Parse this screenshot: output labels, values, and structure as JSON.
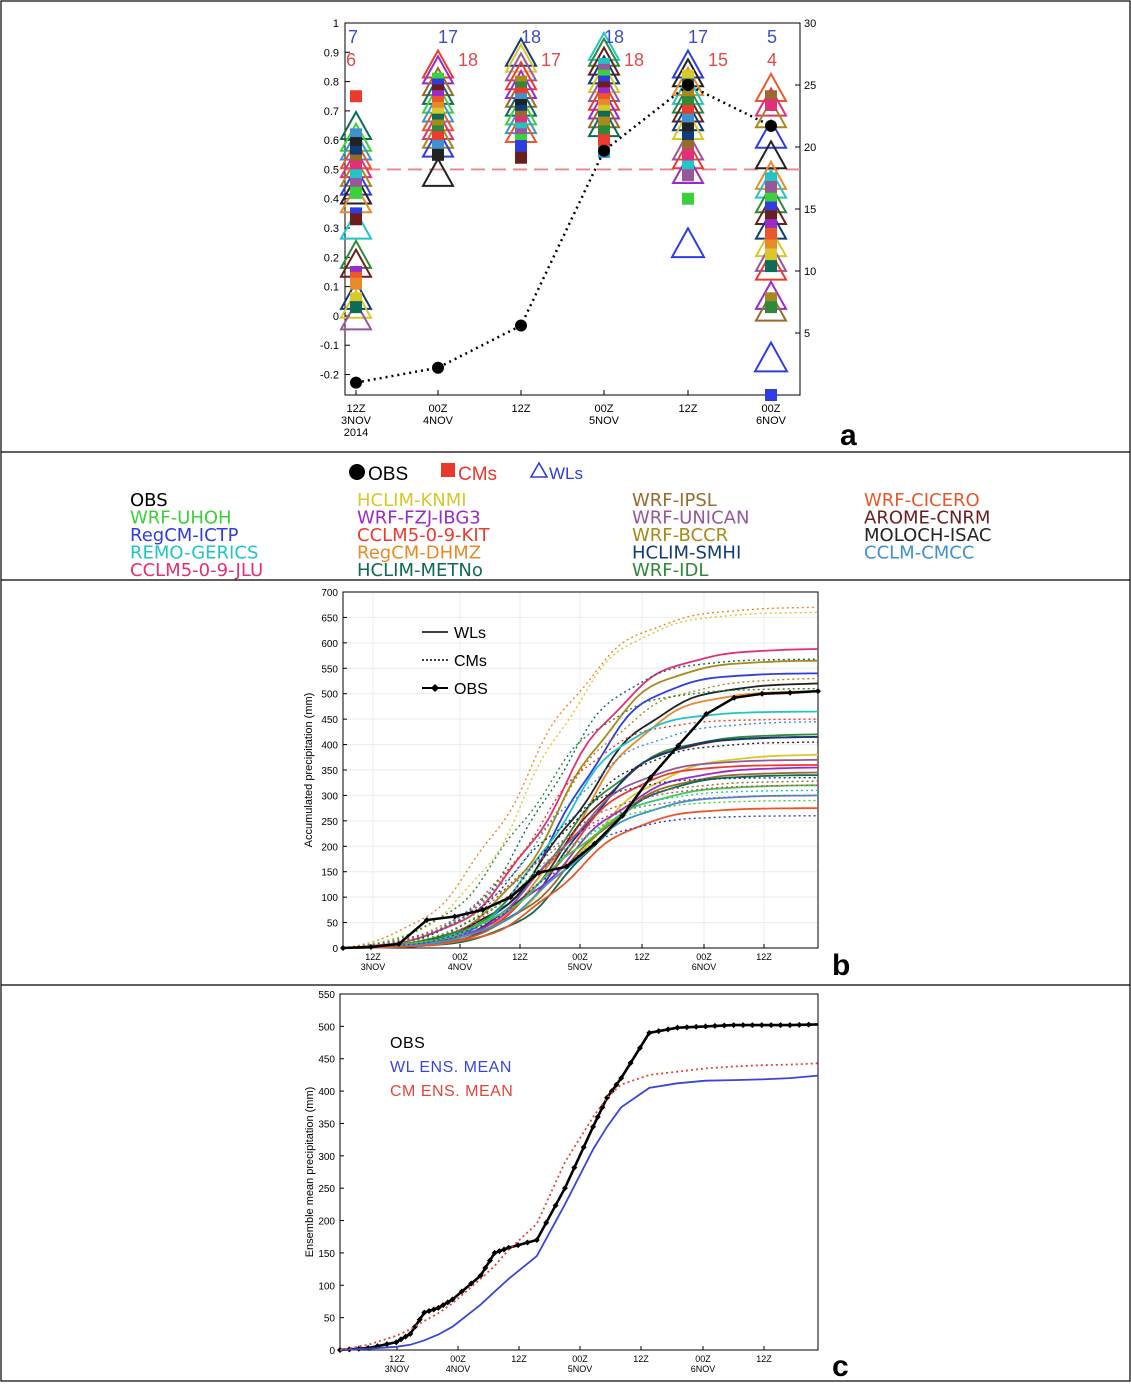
{
  "figure": {
    "panel_labels": [
      "a",
      "b",
      "c"
    ],
    "model_legend": {
      "key": [
        {
          "marker": "circle",
          "label": "OBS",
          "color": "#000000"
        },
        {
          "marker": "square",
          "label": "CMs",
          "color": "#e8382c"
        },
        {
          "marker": "triangle",
          "label": "WLs",
          "color": "#2e3de0"
        }
      ],
      "columns": [
        [
          {
            "label": "OBS",
            "color": "#000000"
          },
          {
            "label": "WRF-UHOH",
            "color": "#3bd13b"
          },
          {
            "label": "RegCM-ICTP",
            "color": "#2e3de0"
          },
          {
            "label": "REMO-GERICS",
            "color": "#22c4c4"
          },
          {
            "label": "CCLM5-0-9-JLU",
            "color": "#e0307a"
          }
        ],
        [
          {
            "label": "HCLIM-KNMI",
            "color": "#d9c82b"
          },
          {
            "label": "WRF-FZJ-IBG3",
            "color": "#9b2bc9"
          },
          {
            "label": "CCLM5-0-9-KIT",
            "color": "#ec3b2e"
          },
          {
            "label": "RegCM-DHMZ",
            "color": "#e8892a"
          },
          {
            "label": "HCLIM-METNo",
            "color": "#0e6b55"
          }
        ],
        [
          {
            "label": "WRF-IPSL",
            "color": "#9a6a2c"
          },
          {
            "label": "WRF-UNICAN",
            "color": "#96589a"
          },
          {
            "label": "WRF-BCCR",
            "color": "#a8891c"
          },
          {
            "label": "HCLIM-SMHI",
            "color": "#123c78"
          },
          {
            "label": "WRF-IDL",
            "color": "#2e8a3a"
          }
        ],
        [
          {
            "label": "WRF-CICERO",
            "color": "#e8582a"
          },
          {
            "label": "AROME-CNRM",
            "color": "#6b1e1e"
          },
          {
            "label": "MOLOCH-ISAC",
            "color": "#222222"
          },
          {
            "label": "CCLM-CMCC",
            "color": "#3f92cc"
          }
        ]
      ]
    }
  },
  "chart_data": [
    {
      "panel": "a",
      "type": "scatter",
      "categories": [
        "12Z\n3NOV\n2014",
        "00Z\n4NOV",
        "12Z",
        "00Z\n5NOV",
        "12Z",
        "00Z\n6NOV"
      ],
      "y_left_lim": [
        -0.27,
        1
      ],
      "y_left_ticks": [
        "1",
        "0.9",
        "0.8",
        "0.7",
        "0.6",
        "0.5",
        "0.4",
        "0.3",
        "0.2",
        "0.1",
        "0",
        "-0.1",
        "-0.2"
      ],
      "y_right_lim": [
        0,
        30
      ],
      "y_right_ticks": [
        "30",
        "25",
        "20",
        "15",
        "10",
        "5"
      ],
      "threshold": 0.5,
      "counts_wl": [
        "7",
        "17",
        "18",
        "18",
        "17",
        "5"
      ],
      "counts_cm": [
        "6",
        "18",
        "17",
        "18",
        "15",
        "4"
      ],
      "obs_right_axis": [
        1,
        2.2,
        5.6,
        19.7,
        25,
        21.7
      ],
      "cm_squares": [
        [
          0.75,
          0.62,
          0.59,
          0.56,
          0.53,
          0.51,
          0.48,
          0.45,
          0.42,
          0.35,
          0.33,
          0.15,
          0.13,
          0.11,
          0.06,
          0.03
        ],
        [
          0.81,
          0.79,
          0.77,
          0.75,
          0.73,
          0.71,
          0.69,
          0.67,
          0.65,
          0.63,
          0.61,
          0.58,
          0.55
        ],
        [
          0.8,
          0.78,
          0.76,
          0.74,
          0.72,
          0.7,
          0.68,
          0.66,
          0.64,
          0.62,
          0.6,
          0.58,
          0.54
        ],
        [
          0.86,
          0.84,
          0.82,
          0.8,
          0.78,
          0.76,
          0.74,
          0.72,
          0.7,
          0.68,
          0.66,
          0.63,
          0.6,
          0.56
        ],
        [
          0.82,
          0.79,
          0.76,
          0.73,
          0.7,
          0.67,
          0.64,
          0.61,
          0.58,
          0.55,
          0.51,
          0.48,
          0.4
        ],
        [
          0.75,
          0.72,
          0.47,
          0.44,
          0.4,
          0.37,
          0.34,
          0.31,
          0.28,
          0.24,
          0.21,
          0.17,
          0.06,
          0.03,
          -0.27
        ]
      ],
      "wl_triangles": [
        [
          0.65,
          0.61,
          0.58,
          0.55,
          0.52,
          0.49,
          0.46,
          0.43,
          0.4,
          0.31,
          0.21,
          0.18,
          0.07,
          0.04,
          0.0
        ],
        [
          0.86,
          0.84,
          0.8,
          0.77,
          0.74,
          0.71,
          0.68,
          0.65,
          0.62,
          0.59,
          0.49
        ],
        [
          0.9,
          0.88,
          0.85,
          0.82,
          0.79,
          0.76,
          0.73,
          0.7,
          0.67,
          0.64
        ],
        [
          0.92,
          0.9,
          0.87,
          0.84,
          0.81,
          0.78,
          0.75,
          0.72,
          0.69,
          0.66
        ],
        [
          0.86,
          0.83,
          0.8,
          0.77,
          0.74,
          0.71,
          0.68,
          0.65,
          0.58,
          0.55,
          0.5,
          0.25
        ],
        [
          0.78,
          0.73,
          0.69,
          0.62,
          0.55,
          0.48,
          0.45,
          0.4,
          0.36,
          0.31,
          0.25,
          0.2,
          0.17,
          0.07,
          0.03,
          -0.14
        ]
      ]
    },
    {
      "panel": "b",
      "type": "line",
      "ylabel": "Accumulated precipitation (mm)",
      "ylim": [
        0,
        700
      ],
      "y_ticks": [
        0,
        50,
        100,
        150,
        200,
        250,
        300,
        350,
        400,
        450,
        500,
        550,
        600,
        650,
        700
      ],
      "x_ticks": [
        "12Z\n3NOV",
        "00Z\n4NOV",
        "12Z",
        "00Z\n5NOV",
        "12Z",
        "00Z\n6NOV",
        "12Z"
      ],
      "legend": [
        {
          "label": "WLs",
          "style": "solid"
        },
        {
          "label": "CMs",
          "style": "dotted"
        },
        {
          "label": "OBS",
          "style": "diamond"
        }
      ],
      "obs": [
        0,
        2,
        8,
        55,
        62,
        75,
        100,
        148,
        160,
        205,
        260,
        335,
        398,
        460,
        492,
        500,
        502,
        505
      ],
      "final_totals_wl": [
        588,
        565,
        540,
        520,
        505,
        465,
        420,
        415,
        415,
        380,
        370,
        360,
        355,
        345,
        340,
        320,
        300,
        275
      ],
      "final_totals_cm": [
        670,
        660,
        568,
        530,
        510,
        450,
        445,
        405,
        335,
        328,
        320,
        310,
        300,
        290,
        260
      ]
    },
    {
      "panel": "c",
      "type": "line",
      "ylabel": "Ensemble mean precipitation (mm)",
      "ylim": [
        0,
        550
      ],
      "y_ticks": [
        0,
        50,
        100,
        150,
        200,
        250,
        300,
        350,
        400,
        450,
        500,
        550
      ],
      "x_ticks": [
        "12Z\n3NOV",
        "00Z\n4NOV",
        "12Z",
        "00Z\n5NOV",
        "12Z",
        "00Z\n6NOV",
        "12Z"
      ],
      "x": [
        0,
        6,
        12,
        15,
        18,
        21,
        24,
        30,
        33,
        36,
        42,
        48,
        54,
        57,
        60,
        66,
        72,
        78,
        84,
        90,
        96,
        102
      ],
      "series": [
        {
          "name": "OBS",
          "color": "#000000",
          "style": "diamond",
          "values": [
            0,
            3,
            12,
            25,
            58,
            65,
            78,
            115,
            150,
            158,
            170,
            250,
            345,
            390,
            420,
            490,
            498,
            500,
            502,
            502,
            502,
            503
          ]
        },
        {
          "name": "WL ENS. MEAN",
          "color": "#3a46d6",
          "style": "solid",
          "values": [
            0,
            2,
            5,
            8,
            15,
            24,
            36,
            70,
            90,
            110,
            145,
            225,
            310,
            345,
            375,
            405,
            412,
            416,
            417,
            418,
            420,
            424
          ]
        },
        {
          "name": "CM ENS. MEAN",
          "color": "#e2453a",
          "style": "dotted",
          "values": [
            0,
            8,
            22,
            32,
            45,
            57,
            72,
            110,
            130,
            155,
            195,
            290,
            360,
            390,
            410,
            425,
            430,
            435,
            438,
            440,
            441,
            443
          ]
        }
      ]
    }
  ]
}
